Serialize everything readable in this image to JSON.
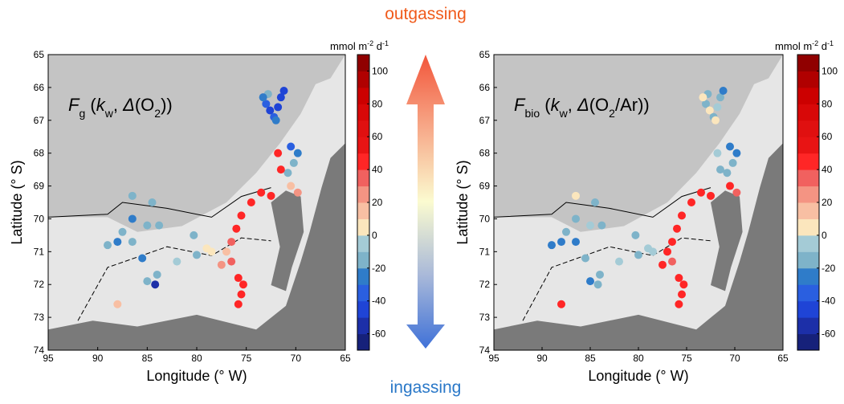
{
  "header": {
    "top": "outgassing",
    "bottom": "ingassing"
  },
  "chart_data": [
    {
      "type": "scatter",
      "title_parts": [
        {
          "text": "F",
          "italic": true
        },
        {
          "text": "g",
          "sub": true
        },
        {
          "text": " ("
        },
        {
          "text": "k",
          "italic": true
        },
        {
          "text": "w",
          "sub": true
        },
        {
          "text": ", "
        },
        {
          "text": "Δ",
          "italic": true
        },
        {
          "text": "(O"
        },
        {
          "text": "2",
          "sub": true
        },
        {
          "text": "))"
        }
      ],
      "xlabel": "Longitude (° W)",
      "ylabel": "Latitude (° S)",
      "xlim": [
        95,
        65
      ],
      "ylim": [
        74,
        65
      ],
      "xticks": [
        95,
        90,
        85,
        80,
        75,
        70,
        65
      ],
      "yticks": [
        65,
        66,
        67,
        68,
        69,
        70,
        71,
        72,
        73,
        74
      ],
      "colorbar": {
        "units": [
          "mmol m",
          "-2",
          " d",
          "-1"
        ],
        "clim": [
          -70,
          110
        ],
        "step": 10,
        "ticks": [
          -60,
          -40,
          -20,
          0,
          20,
          40,
          60,
          80,
          100
        ],
        "colors": [
          "#16217a",
          "#1c2fa8",
          "#1f44d6",
          "#2a5fe0",
          "#2f7cc9",
          "#7eb3c9",
          "#a4cbd6",
          "#fbe6bd",
          "#f8bfa3",
          "#f49483",
          "#f1615f",
          "#ff2626",
          "#e81414",
          "#e01010",
          "#d80808",
          "#cc0000",
          "#b00000",
          "#900000"
        ]
      },
      "x": [
        73,
        72.6,
        72.2,
        71.8,
        71.5,
        71.2,
        72.8,
        73.3,
        72,
        70.5,
        69.8,
        70.2,
        70.8,
        71.5,
        71.8,
        70.5,
        69.8,
        72.5,
        73.5,
        74.5,
        75.5,
        76,
        76.5,
        77,
        77.5,
        76.5,
        75.8,
        75.5,
        75.3,
        75.8,
        78.5,
        80,
        82,
        84,
        85,
        84.2,
        85.5,
        86.5,
        88,
        89,
        87.5,
        86.5,
        86.5,
        84.5,
        83.8,
        85,
        88,
        80.3,
        79
      ],
      "values": [
        66.5,
        66.7,
        66.9,
        66.6,
        66.3,
        66.1,
        66.2,
        66.3,
        67,
        67.8,
        68,
        68.3,
        68.6,
        68.5,
        68,
        69,
        69.2,
        69.3,
        69.2,
        69.5,
        69.9,
        70.3,
        70.7,
        71,
        71.4,
        71.3,
        71.8,
        72.3,
        72,
        72.6,
        71,
        71.1,
        71.3,
        71.7,
        71.9,
        72,
        71.2,
        70.7,
        70.7,
        70.8,
        70.4,
        70,
        69.3,
        69.5,
        70.2,
        70.2,
        72.6,
        70.5,
        70.9
      ],
      "flux": [
        -40,
        -45,
        -40,
        -50,
        -45,
        -45,
        -20,
        -25,
        -30,
        -40,
        -30,
        -20,
        -15,
        40,
        45,
        15,
        20,
        40,
        45,
        40,
        45,
        40,
        30,
        10,
        25,
        35,
        40,
        45,
        40,
        40,
        5,
        -15,
        -10,
        -20,
        -15,
        -55,
        -25,
        -15,
        -25,
        -20,
        -15,
        -25,
        -15,
        -20,
        -15,
        -15,
        15,
        -15,
        5
      ]
    },
    {
      "type": "scatter",
      "title_parts": [
        {
          "text": "F",
          "italic": true
        },
        {
          "text": "bio",
          "sub": true
        },
        {
          "text": " ("
        },
        {
          "text": "k",
          "italic": true
        },
        {
          "text": "w",
          "sub": true
        },
        {
          "text": ", "
        },
        {
          "text": "Δ",
          "italic": true
        },
        {
          "text": "(O"
        },
        {
          "text": "2",
          "sub": true
        },
        {
          "text": "/Ar))"
        }
      ],
      "xlabel": "Longitude (° W)",
      "ylabel": "Latitude (° S)",
      "xlim": [
        95,
        65
      ],
      "ylim": [
        74,
        65
      ],
      "xticks": [
        95,
        90,
        85,
        80,
        75,
        70,
        65
      ],
      "yticks": [
        65,
        66,
        67,
        68,
        69,
        70,
        71,
        72,
        73,
        74
      ],
      "colorbar": {
        "units": [
          "mmol m",
          "-2",
          " d",
          "-1"
        ],
        "clim": [
          -70,
          110
        ],
        "step": 10,
        "ticks": [
          -60,
          -40,
          -20,
          0,
          20,
          40,
          60,
          80,
          100
        ],
        "colors": [
          "#16217a",
          "#1c2fa8",
          "#1f44d6",
          "#2a5fe0",
          "#2f7cc9",
          "#7eb3c9",
          "#a4cbd6",
          "#fbe6bd",
          "#f8bfa3",
          "#f49483",
          "#f1615f",
          "#ff2626",
          "#e81414",
          "#e01010",
          "#d80808",
          "#cc0000",
          "#b00000",
          "#900000"
        ]
      },
      "x": [
        73,
        72.6,
        72.2,
        71.8,
        71.5,
        71.2,
        72.8,
        73.3,
        72,
        70.5,
        69.8,
        70.2,
        70.8,
        71.5,
        71.8,
        70.5,
        69.8,
        72.5,
        73.5,
        74.5,
        75.5,
        76,
        76.5,
        77,
        77.5,
        76.5,
        75.8,
        75.5,
        75.3,
        75.8,
        78.5,
        80,
        82,
        84,
        85,
        84.2,
        85.5,
        86.5,
        88,
        89,
        87.5,
        86.5,
        86.5,
        84.5,
        83.8,
        85,
        88,
        80.3,
        79
      ],
      "values": [
        66.5,
        66.7,
        66.9,
        66.6,
        66.3,
        66.1,
        66.2,
        66.3,
        67,
        67.8,
        68,
        68.3,
        68.6,
        68.5,
        68,
        69,
        69.2,
        69.3,
        69.2,
        69.5,
        69.9,
        70.3,
        70.7,
        71,
        71.4,
        71.3,
        71.8,
        72.3,
        72,
        72.6,
        71,
        71.1,
        71.3,
        71.7,
        71.9,
        72,
        71.2,
        70.7,
        70.7,
        70.8,
        70.4,
        70,
        69.3,
        69.5,
        70.2,
        70.2,
        72.6,
        70.5,
        70.9
      ],
      "flux": [
        -15,
        5,
        -15,
        -10,
        -15,
        -25,
        -15,
        5,
        5,
        -25,
        -30,
        -15,
        -15,
        -15,
        -10,
        40,
        35,
        45,
        45,
        45,
        45,
        45,
        45,
        45,
        40,
        30,
        40,
        45,
        45,
        40,
        -10,
        -15,
        -10,
        -20,
        -25,
        -20,
        -15,
        -25,
        -25,
        -25,
        -15,
        -15,
        5,
        -15,
        -15,
        -10,
        40,
        -15,
        -10
      ]
    }
  ]
}
